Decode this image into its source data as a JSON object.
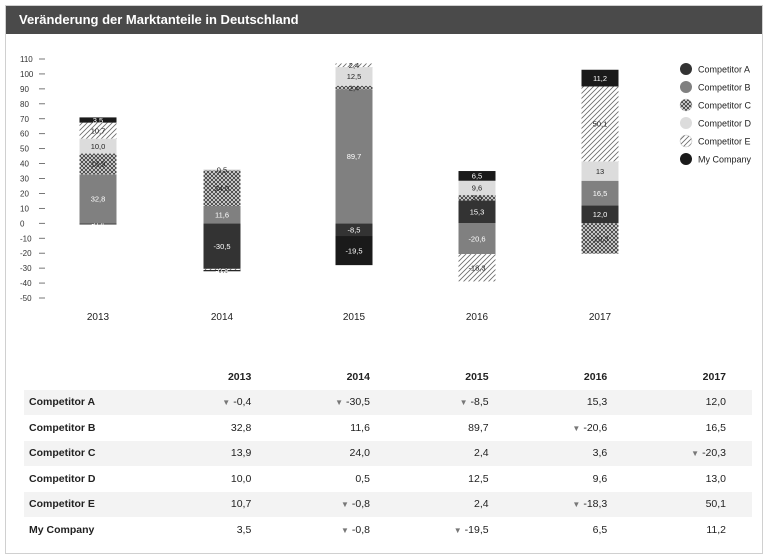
{
  "title": "Veränderung der Marktanteile in Deutschland",
  "chart_data": {
    "type": "bar",
    "stacked": true,
    "categories": [
      "2013",
      "2014",
      "2015",
      "2016",
      "2017"
    ],
    "ylim": [
      -50,
      110
    ],
    "yticks": [
      110,
      100,
      90,
      80,
      70,
      60,
      50,
      40,
      30,
      20,
      10,
      0,
      -10,
      -20,
      -30,
      -40,
      -50
    ],
    "legend_position": "right",
    "series": [
      {
        "name": "Competitor A",
        "color": "#333333",
        "pattern": "solid",
        "values": [
          -0.4,
          -30.5,
          -8.5,
          15.3,
          12.0
        ],
        "labels": [
          "-0,4",
          "-30,5",
          "-8,5",
          "15,3",
          "12,0"
        ]
      },
      {
        "name": "Competitor B",
        "color": "#808080",
        "pattern": "solid",
        "values": [
          32.8,
          11.6,
          89.7,
          -20.6,
          16.5
        ],
        "labels": [
          "32,8",
          "11,6",
          "89,7",
          "-20,6",
          "16,5"
        ]
      },
      {
        "name": "Competitor C",
        "color": "#9a9a9a",
        "pattern": "crosshatch",
        "values": [
          13.9,
          24.0,
          2.4,
          3.6,
          -20.3
        ],
        "labels": [
          "13,9",
          "24,0",
          "2,4",
          "3,6",
          "-20,3"
        ]
      },
      {
        "name": "Competitor D",
        "color": "#dcdcdc",
        "pattern": "solid",
        "values": [
          10.0,
          0.5,
          12.5,
          9.6,
          13.0
        ],
        "labels": [
          "10,0",
          "0,5",
          "12,5",
          "9,6",
          "13"
        ]
      },
      {
        "name": "Competitor E",
        "color": "#c8c8c8",
        "pattern": "diagonal",
        "values": [
          10.7,
          -0.8,
          2.4,
          -18.3,
          50.1
        ],
        "labels": [
          "10,7",
          "-0,8",
          "2,4",
          "-18,3",
          "50,1"
        ]
      },
      {
        "name": "My Company",
        "color": "#1a1a1a",
        "pattern": "solid",
        "values": [
          3.5,
          -0.8,
          -19.5,
          6.5,
          11.2
        ],
        "labels": [
          "3,5",
          "-0,8",
          "-19,5",
          "6,5",
          "11,2"
        ]
      }
    ]
  },
  "table": {
    "headers": [
      "",
      "2013",
      "2014",
      "2015",
      "2016",
      "2017"
    ],
    "rows": [
      {
        "label": "Competitor A",
        "cells": [
          {
            "v": "-0,4",
            "down": true
          },
          {
            "v": "-30,5",
            "down": true
          },
          {
            "v": "-8,5",
            "down": true
          },
          {
            "v": "15,3",
            "down": false
          },
          {
            "v": "12,0",
            "down": false
          }
        ]
      },
      {
        "label": "Competitor B",
        "cells": [
          {
            "v": "32,8",
            "down": false
          },
          {
            "v": "11,6",
            "down": false
          },
          {
            "v": "89,7",
            "down": false
          },
          {
            "v": "-20,6",
            "down": true
          },
          {
            "v": "16,5",
            "down": false
          }
        ]
      },
      {
        "label": "Competitor C",
        "cells": [
          {
            "v": "13,9",
            "down": false
          },
          {
            "v": "24,0",
            "down": false
          },
          {
            "v": "2,4",
            "down": false
          },
          {
            "v": "3,6",
            "down": false
          },
          {
            "v": "-20,3",
            "down": true
          }
        ]
      },
      {
        "label": "Competitor D",
        "cells": [
          {
            "v": "10,0",
            "down": false
          },
          {
            "v": "0,5",
            "down": false
          },
          {
            "v": "12,5",
            "down": false
          },
          {
            "v": "9,6",
            "down": false
          },
          {
            "v": "13,0",
            "down": false
          }
        ]
      },
      {
        "label": "Competitor E",
        "cells": [
          {
            "v": "10,7",
            "down": false
          },
          {
            "v": "-0,8",
            "down": true
          },
          {
            "v": "2,4",
            "down": false
          },
          {
            "v": "-18,3",
            "down": true
          },
          {
            "v": "50,1",
            "down": false
          }
        ]
      },
      {
        "label": "My Company",
        "cells": [
          {
            "v": "3,5",
            "down": false
          },
          {
            "v": "-0,8",
            "down": true
          },
          {
            "v": "-19,5",
            "down": true
          },
          {
            "v": "6,5",
            "down": false
          },
          {
            "v": "11,2",
            "down": false
          }
        ]
      }
    ]
  }
}
